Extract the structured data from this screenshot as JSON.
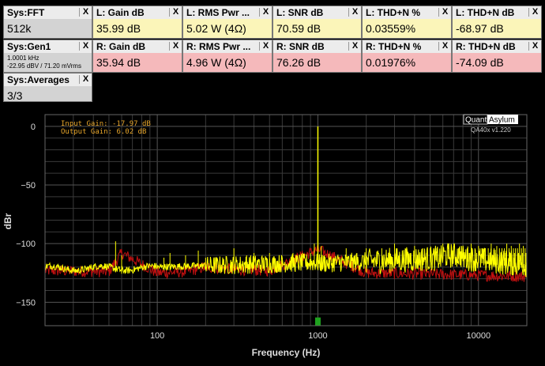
{
  "tiles": {
    "fft": {
      "title": "Sys:FFT",
      "value": "512k"
    },
    "gen": {
      "title": "Sys:Gen1",
      "line1": "1.0001 kHz",
      "line2": "-22.95 dBV / 71.20 mVrms"
    },
    "avg": {
      "title": "Sys:Averages",
      "value": "3/3"
    },
    "l_gain": {
      "title": "L: Gain dB",
      "value": "35.99 dB"
    },
    "l_rms": {
      "title": "L: RMS Pwr ...",
      "value": "5.02 W (4Ω)"
    },
    "l_snr": {
      "title": "L: SNR dB",
      "value": "70.59 dB"
    },
    "l_thdn_pct": {
      "title": "L: THD+N %",
      "value": "0.03559%"
    },
    "l_thdn_db": {
      "title": "L: THD+N dB",
      "value": "-68.97 dB"
    },
    "r_gain": {
      "title": "R: Gain dB",
      "value": "35.94 dB"
    },
    "r_rms": {
      "title": "R: RMS Pwr ...",
      "value": "4.96 W (4Ω)"
    },
    "r_snr": {
      "title": "R: SNR dB",
      "value": "76.26 dB"
    },
    "r_thdn_pct": {
      "title": "R: THD+N %",
      "value": "0.01976%"
    },
    "r_thdn_db": {
      "title": "R: THD+N dB",
      "value": "-74.09 dB"
    },
    "close_glyph": "X"
  },
  "plot": {
    "annotation_input": "Input Gain: -17.97 dB",
    "annotation_output": "Output Gain: 6.02 dB",
    "logo_left": "Quant",
    "logo_right": "Asylum",
    "version": "QA40x v1.220",
    "colors": {
      "left": "#ffff00",
      "right": "#c01010",
      "grid": "#3a3a3a",
      "marker": "#1fa21f"
    }
  },
  "chart_data": {
    "type": "line",
    "title": "",
    "xlabel": "Frequency (Hz)",
    "ylabel": "dBr",
    "xscale": "log",
    "xlim": [
      20,
      20000
    ],
    "ylim": [
      -170,
      10
    ],
    "xticks": [
      100,
      1000,
      10000
    ],
    "xtick_labels": [
      "100",
      "1000",
      "10000"
    ],
    "yticks": [
      0,
      -50,
      -100,
      -150
    ],
    "ytick_labels": [
      "0",
      "−50",
      "−100",
      "−150"
    ],
    "grid": true,
    "marker_frequency": 1000,
    "series": [
      {
        "color": "yellow",
        "x": [
          20,
          30,
          40,
          50,
          55,
          60,
          70,
          80,
          100,
          120,
          150,
          180,
          200,
          250,
          300,
          400,
          500,
          600,
          700,
          800,
          900,
          950,
          1000,
          1050,
          1100,
          1500,
          2000,
          2500,
          3000,
          4000,
          5000,
          6000,
          7000,
          8000,
          10000,
          12000,
          15000,
          20000
        ],
        "y": [
          -118,
          -120,
          -122,
          -118,
          -98,
          -118,
          -120,
          -121,
          -122,
          -120,
          -117,
          -119,
          -112,
          -119,
          -104,
          -116,
          -115,
          -117,
          -114,
          -118,
          -117,
          -100,
          0,
          -102,
          -117,
          -104,
          -110,
          -108,
          -106,
          -100,
          -100,
          -100,
          -100,
          -104,
          -114,
          -118,
          -120,
          -120
        ]
      },
      {
        "color": "red",
        "x": [
          20,
          50,
          60,
          100,
          150,
          200,
          300,
          500,
          1000,
          2000,
          5000,
          10000,
          20000
        ],
        "y": [
          -123,
          -124,
          -108,
          -125,
          -124,
          -120,
          -122,
          -123,
          -105,
          -125,
          -126,
          -127,
          -128
        ]
      }
    ]
  }
}
